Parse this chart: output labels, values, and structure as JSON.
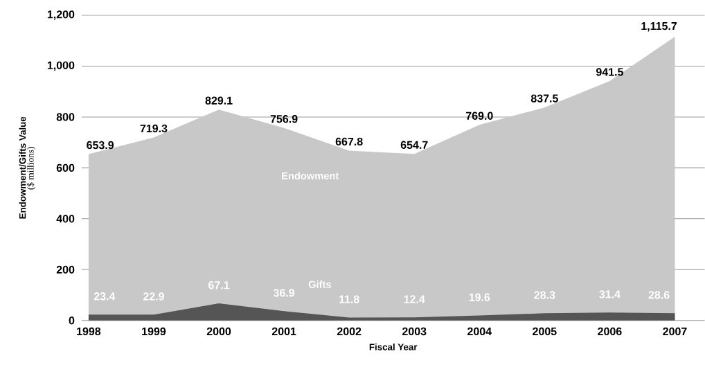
{
  "chart_data": {
    "type": "area",
    "categories": [
      "1998",
      "1999",
      "2000",
      "2001",
      "2002",
      "2003",
      "2004",
      "2005",
      "2006",
      "2007"
    ],
    "series": [
      {
        "name": "Endowment",
        "color": "#c8c8c8",
        "values": [
          653.9,
          719.3,
          829.1,
          756.9,
          667.8,
          654.7,
          769.0,
          837.5,
          941.5,
          1115.7
        ],
        "value_labels": [
          "653.9",
          "719.3",
          "829.1",
          "756.9",
          "667.8",
          "654.7",
          "769.0",
          "837.5",
          "941.5",
          "1,115.7"
        ]
      },
      {
        "name": "Gifts",
        "color": "#555555",
        "values": [
          23.4,
          22.9,
          67.1,
          36.9,
          11.8,
          12.4,
          19.6,
          28.3,
          31.4,
          28.6
        ],
        "value_labels": [
          "23.4",
          "22.9",
          "67.1",
          "36.9",
          "11.8",
          "12.4",
          "19.6",
          "28.3",
          "31.4",
          "28.6"
        ]
      }
    ],
    "xlabel": "Fiscal Year",
    "ylabel": "Endowment/Gifts Value",
    "annotations": [
      "($ millions)"
    ],
    "ylim": [
      0,
      1200
    ],
    "yticks": [
      0,
      200,
      400,
      600,
      800,
      {
        "value": 1000,
        "label": "1,000"
      },
      {
        "value": 1200,
        "label": "1,200"
      }
    ],
    "grid": "y"
  }
}
